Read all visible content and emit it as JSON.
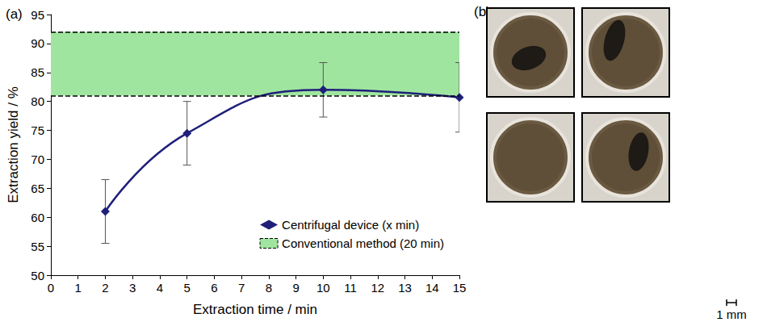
{
  "chart_data": {
    "type": "line",
    "panel_label": "(a)",
    "x_label": "Extraction time / min",
    "y_label": "Extraction yield / %",
    "xlim": [
      0,
      15
    ],
    "xticks": [
      0,
      1,
      2,
      3,
      4,
      5,
      6,
      7,
      8,
      9,
      10,
      11,
      12,
      13,
      14,
      15
    ],
    "ylim": [
      50,
      95
    ],
    "yticks": [
      50,
      55,
      60,
      65,
      70,
      75,
      80,
      85,
      90,
      95
    ],
    "grid": false,
    "legend": "lower right",
    "series": [
      {
        "name": "Centrifugal device (x min)",
        "color": "#1f1f7a",
        "marker": "diamond",
        "line_style": "smooth",
        "x": [
          2,
          5,
          10,
          15
        ],
        "values": [
          61,
          74.5,
          82,
          80.7
        ],
        "error": [
          5.5,
          5.5,
          4.7,
          6
        ]
      }
    ],
    "band": {
      "name": "Conventional method (20 min)",
      "color": "#9fe59f",
      "line_style": "dashed",
      "range": [
        81,
        92
      ]
    }
  },
  "panel_b": {
    "label": "(b)",
    "scale_bar": "1 mm"
  }
}
